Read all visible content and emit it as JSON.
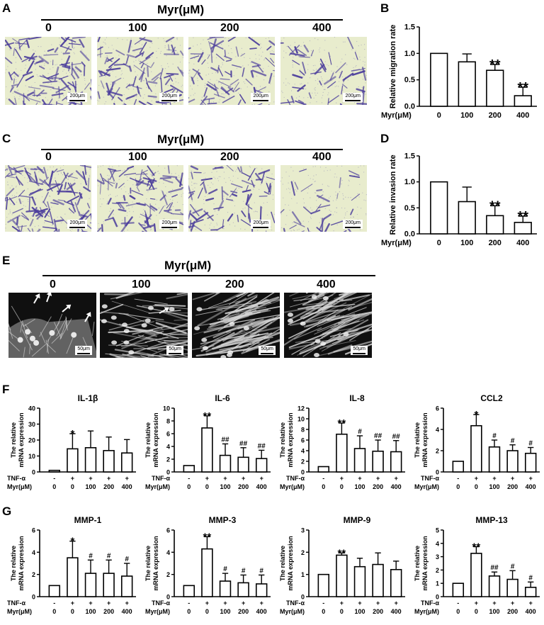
{
  "panels": {
    "A": "A",
    "B": "B",
    "C": "C",
    "D": "D",
    "E": "E",
    "F": "F",
    "G": "G"
  },
  "treatment_header": "Myr(μM)",
  "doses": [
    "0",
    "100",
    "200",
    "400"
  ],
  "scale_bar_transwell": "200μm",
  "scale_bar_fluor": "50μm",
  "image_colors": {
    "transwell_bg": "#e8eccd",
    "cell_stain": "#4b3d9c",
    "fluor_bg": "#101010",
    "fluor_cell": "#d8d8d8"
  },
  "bar_labels": {
    "myr_row": "Myr(μM)",
    "tnf_row": "TNF-α",
    "tnf_values": [
      "-",
      "+",
      "+",
      "+",
      "+"
    ],
    "myr_values": [
      "0",
      "0",
      "100",
      "200",
      "400"
    ],
    "mrna_ylabel_line1": "The relative",
    "mrna_ylabel_line2": "mRNA expression"
  },
  "chart_data": [
    {
      "id": "B",
      "type": "bar",
      "ylabel": "Relative migration rate",
      "categories": [
        "0",
        "100",
        "200",
        "400"
      ],
      "values": [
        1.0,
        0.84,
        0.68,
        0.2
      ],
      "errors": [
        0,
        0.15,
        0.11,
        0.16
      ],
      "ylim": [
        0,
        1.5
      ],
      "ticks": [
        "0.0",
        "0.5",
        "1.0",
        "1.5"
      ],
      "annotations": [
        "",
        "",
        "**",
        "**"
      ]
    },
    {
      "id": "D",
      "type": "bar",
      "ylabel": "Relative invasion rate",
      "categories": [
        "0",
        "100",
        "200",
        "400"
      ],
      "values": [
        1.0,
        0.62,
        0.35,
        0.22
      ],
      "errors": [
        0,
        0.28,
        0.19,
        0.12
      ],
      "ylim": [
        0,
        1.5
      ],
      "ticks": [
        "0.0",
        "0.5",
        "1.0",
        "1.5"
      ],
      "annotations": [
        "",
        "",
        "**",
        "**"
      ]
    },
    {
      "id": "IL-1b",
      "type": "bar",
      "title": "IL-1β",
      "values": [
        1.0,
        14.5,
        15.2,
        13.4,
        11.9
      ],
      "errors": [
        0,
        9.5,
        10.5,
        8.5,
        8.4
      ],
      "ylim": [
        0,
        40
      ],
      "ticks": [
        "0",
        "10",
        "20",
        "30",
        "40"
      ],
      "annotations": [
        "",
        "*",
        "",
        "",
        ""
      ]
    },
    {
      "id": "IL-6",
      "type": "bar",
      "title": "IL-6",
      "values": [
        1.0,
        6.9,
        2.6,
        2.3,
        2.1
      ],
      "errors": [
        0,
        1.9,
        1.8,
        1.5,
        1.3
      ],
      "ylim": [
        0,
        10
      ],
      "ticks": [
        "0",
        "2",
        "4",
        "6",
        "8",
        "10"
      ],
      "annotations": [
        "",
        "**",
        "##",
        "##",
        "##"
      ]
    },
    {
      "id": "IL-8",
      "type": "bar",
      "title": "IL-8",
      "values": [
        1.0,
        7.1,
        4.4,
        3.9,
        3.8
      ],
      "errors": [
        0,
        2.1,
        2.4,
        2.1,
        2.1
      ],
      "ylim": [
        0,
        12
      ],
      "ticks": [
        "0",
        "2",
        "4",
        "6",
        "8",
        "10",
        "12"
      ],
      "annotations": [
        "",
        "**",
        "#",
        "##",
        "##"
      ]
    },
    {
      "id": "CCL2",
      "type": "bar",
      "title": "CCL2",
      "values": [
        1.0,
        4.35,
        2.35,
        2.0,
        1.75
      ],
      "errors": [
        0,
        1.05,
        0.65,
        0.55,
        0.55
      ],
      "ylim": [
        0,
        6
      ],
      "ticks": [
        "0",
        "2",
        "4",
        "6"
      ],
      "annotations": [
        "",
        "*",
        "#",
        "#",
        "#"
      ]
    },
    {
      "id": "MMP-1",
      "type": "bar",
      "title": "MMP-1",
      "values": [
        1.0,
        3.5,
        2.1,
        2.1,
        1.85
      ],
      "errors": [
        0,
        1.5,
        1.2,
        1.2,
        1.15
      ],
      "ylim": [
        0,
        6
      ],
      "ticks": [
        "0",
        "2",
        "4",
        "6"
      ],
      "annotations": [
        "",
        "*",
        "#",
        "#",
        "#"
      ]
    },
    {
      "id": "MMP-3",
      "type": "bar",
      "title": "MMP-3",
      "values": [
        1.0,
        4.3,
        1.4,
        1.25,
        1.15
      ],
      "errors": [
        0,
        1.1,
        0.7,
        0.7,
        0.8
      ],
      "ylim": [
        0,
        6
      ],
      "ticks": [
        "0",
        "2",
        "4",
        "6"
      ],
      "annotations": [
        "",
        "**",
        "#",
        "#",
        "#"
      ]
    },
    {
      "id": "MMP-9",
      "type": "bar",
      "title": "MMP-9",
      "values": [
        1.0,
        1.87,
        1.35,
        1.45,
        1.22
      ],
      "errors": [
        0,
        0.1,
        0.38,
        0.52,
        0.38
      ],
      "ylim": [
        0,
        3
      ],
      "ticks": [
        "0",
        "1",
        "2",
        "3"
      ],
      "annotations": [
        "",
        "**",
        "",
        "",
        ""
      ]
    },
    {
      "id": "MMP-13",
      "type": "bar",
      "title": "MMP-13",
      "values": [
        1.0,
        3.25,
        1.55,
        1.3,
        0.7
      ],
      "errors": [
        0,
        0.5,
        0.3,
        0.65,
        0.4
      ],
      "ylim": [
        0,
        5
      ],
      "ticks": [
        "0",
        "1",
        "2",
        "3",
        "4",
        "5"
      ],
      "annotations": [
        "",
        "**",
        "##",
        "#",
        "#"
      ]
    }
  ]
}
